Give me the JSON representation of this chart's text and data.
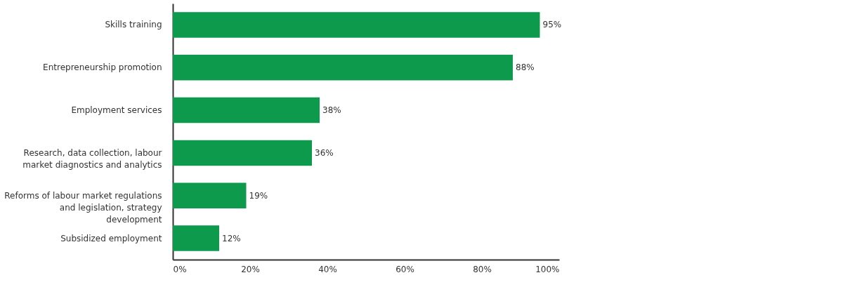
{
  "chart_data": {
    "type": "bar",
    "orientation": "horizontal",
    "categories": [
      "Skills training",
      "Entrepreneurship promotion",
      "Employment services",
      "Research, data collection, labour market diagnostics and analytics",
      "Reforms of labour market regulations and legislation, strategy development",
      "Subsidized employment"
    ],
    "values": [
      95,
      88,
      38,
      36,
      19,
      12
    ],
    "value_labels": [
      "95%",
      "88%",
      "38%",
      "36%",
      "19%",
      "12%"
    ],
    "color": "#0e9a4c",
    "xlim": [
      0,
      100
    ],
    "xticks": [
      {
        "value": 0,
        "label": "0%"
      },
      {
        "value": 20,
        "label": "20%"
      },
      {
        "value": 40,
        "label": "40%"
      },
      {
        "value": 60,
        "label": "60%"
      },
      {
        "value": 80,
        "label": "80%"
      },
      {
        "value": 100,
        "label": "100%"
      }
    ],
    "grid": false
  }
}
